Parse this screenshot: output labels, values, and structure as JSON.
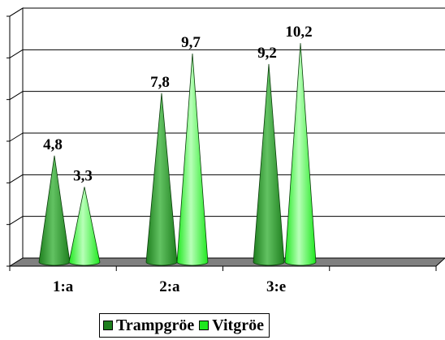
{
  "chart_data": {
    "type": "bar",
    "categories": [
      "1:a",
      "2:a",
      "3:e"
    ],
    "series": [
      {
        "name": "Trampgröe",
        "values": [
          4.8,
          7.8,
          9.2
        ],
        "labels": [
          "4,8",
          "7,8",
          "9,2"
        ]
      },
      {
        "name": "Vitgröe",
        "values": [
          3.3,
          9.7,
          10.2
        ],
        "labels": [
          "3,3",
          "9,7",
          "10,2"
        ]
      }
    ],
    "ylim": [
      0,
      12
    ],
    "grid": true,
    "legend_position": "bottom",
    "colors": {
      "series": [
        "#1e7f1e",
        "#1ee81e"
      ],
      "series_light": [
        "#62c262",
        "#b8ffb8"
      ],
      "floor": "#808080"
    }
  }
}
